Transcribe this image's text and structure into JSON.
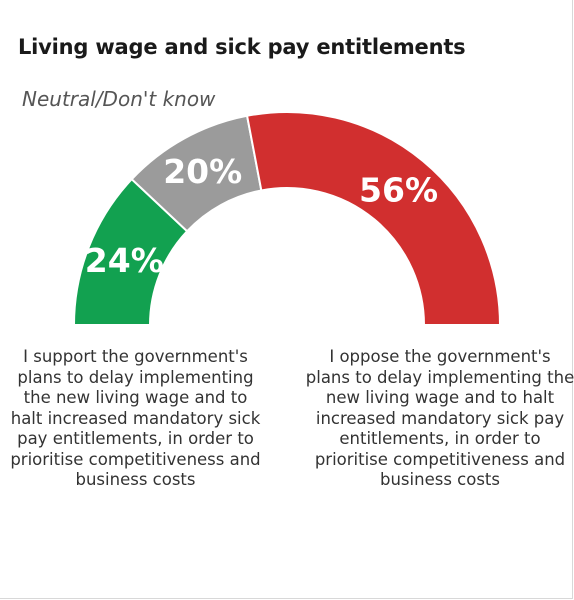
{
  "chart_data": {
    "type": "half-donut",
    "title": "Living wage and sick pay entitlements",
    "subtitle": "Neutral/Don't know",
    "segments": [
      {
        "label": "I support the government's plans to delay implementing the new living wage and to halt increased mandatory sick pay entitlements, in order to prioritise competitiveness and business costs",
        "value": 24,
        "display": "24%",
        "color": "#12a150"
      },
      {
        "label": "Neutral/Don't know",
        "value": 20,
        "display": "20%",
        "color": "#9b9b9b"
      },
      {
        "label": "I oppose the government's plans to delay implementing the new living wage and to halt increased mandatory sick pay entitlements, in order to prioritise competitiveness and business costs",
        "value": 56,
        "display": "56%",
        "color": "#d12f2f"
      }
    ],
    "total": 100
  },
  "labels": {
    "left": "I support the government's plans to delay implementing the new living wage and to halt increased mandatory sick pay entitlements, in order to prioritise competitiveness and business costs",
    "right": "I oppose the government's plans to delay implementing the new living wage and to halt increased mandatory sick pay entitlements, in order to prioritise competitiveness and business costs"
  }
}
